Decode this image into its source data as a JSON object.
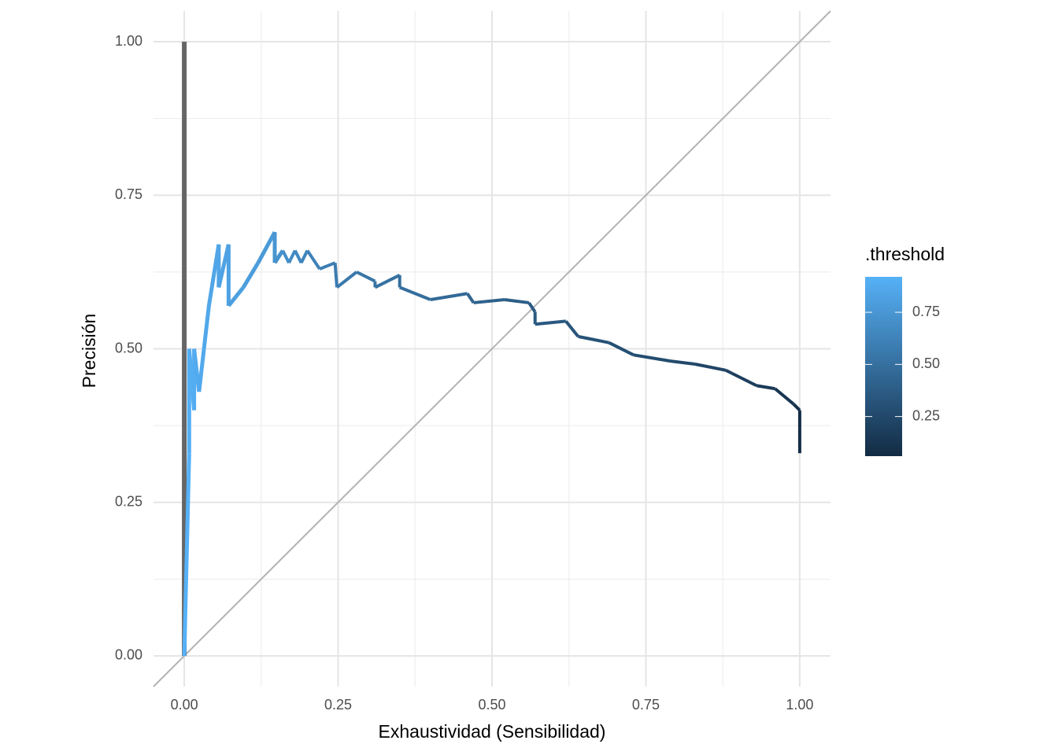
{
  "chart_data": {
    "type": "path",
    "x_label": "Exhaustividad (Sensibilidad)",
    "y_label": "Precisión",
    "xlim": [
      -0.05,
      1.05
    ],
    "ylim": [
      -0.05,
      1.05
    ],
    "xticks": [
      {
        "value": 0,
        "label": "0.00"
      },
      {
        "value": 0.25,
        "label": "0.25"
      },
      {
        "value": 0.5,
        "label": "0.50"
      },
      {
        "value": 0.75,
        "label": "0.75"
      },
      {
        "value": 1,
        "label": "1.00"
      }
    ],
    "yticks": [
      {
        "value": 0,
        "label": "0.00"
      },
      {
        "value": 0.25,
        "label": "0.25"
      },
      {
        "value": 0.5,
        "label": "0.50"
      },
      {
        "value": 0.75,
        "label": "0.75"
      },
      {
        "value": 1,
        "label": "1.00"
      }
    ],
    "grid": true,
    "na_color": "#666666",
    "legend": {
      "title": ".threshold",
      "low_color": "#132B43",
      "high_color": "#56B1F7",
      "limits": [
        0.06,
        0.92
      ],
      "ticks": [
        {
          "value": 0.25,
          "label": "0.25"
        },
        {
          "value": 0.5,
          "label": "0.50"
        },
        {
          "value": 0.75,
          "label": "0.75"
        }
      ]
    },
    "x": [
      0,
      0,
      0.008,
      0.008,
      0.016,
      0.016,
      0.024,
      0.032,
      0.04,
      0.056,
      0.056,
      0.072,
      0.072,
      0.096,
      0.12,
      0.147,
      0.147,
      0.16,
      0.17,
      0.18,
      0.19,
      0.2,
      0.22,
      0.245,
      0.248,
      0.28,
      0.31,
      0.31,
      0.35,
      0.35,
      0.4,
      0.46,
      0.47,
      0.52,
      0.56,
      0.57,
      0.57,
      0.62,
      0.64,
      0.69,
      0.73,
      0.79,
      0.83,
      0.88,
      0.89,
      0.93,
      0.96,
      0.99,
      1.0,
      1.0
    ],
    "y": [
      1,
      0,
      0.33,
      0.5,
      0.4,
      0.5,
      0.43,
      0.5,
      0.57,
      0.67,
      0.6,
      0.67,
      0.57,
      0.6,
      0.64,
      0.69,
      0.64,
      0.66,
      0.64,
      0.66,
      0.64,
      0.66,
      0.63,
      0.64,
      0.6,
      0.625,
      0.61,
      0.6,
      0.62,
      0.6,
      0.58,
      0.59,
      0.575,
      0.58,
      0.575,
      0.56,
      0.54,
      0.545,
      0.52,
      0.51,
      0.49,
      0.48,
      0.475,
      0.465,
      0.46,
      0.44,
      0.435,
      0.41,
      0.4,
      0.33
    ],
    "threshold": [
      null,
      0.92,
      0.91,
      0.9,
      0.89,
      0.88,
      0.87,
      0.86,
      0.85,
      0.84,
      0.83,
      0.82,
      0.81,
      0.79,
      0.77,
      0.74,
      0.72,
      0.7,
      0.68,
      0.66,
      0.64,
      0.62,
      0.6,
      0.58,
      0.56,
      0.54,
      0.52,
      0.51,
      0.5,
      0.49,
      0.46,
      0.43,
      0.41,
      0.39,
      0.37,
      0.36,
      0.35,
      0.33,
      0.31,
      0.29,
      0.27,
      0.25,
      0.23,
      0.21,
      0.19,
      0.16,
      0.13,
      0.1,
      0.08,
      0.06
    ]
  }
}
